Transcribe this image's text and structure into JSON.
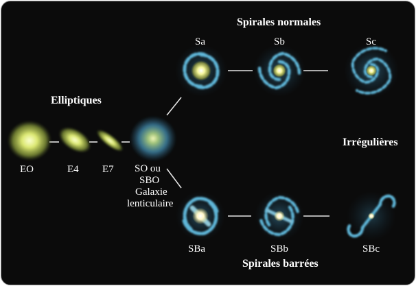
{
  "sections": {
    "elliptical": "Elliptiques",
    "normal_spirals": "Spirales normales",
    "irregular": "Irrégulières",
    "barred_spirals": "Spirales barrées"
  },
  "galaxies": {
    "e0": "EO",
    "e4": "E4",
    "e7": "E7",
    "s0": [
      "SO ou",
      "SBO",
      "Galaxie",
      "lenticulaire"
    ],
    "sa": "Sa",
    "sb": "Sb",
    "sc": "Sc",
    "sba": "SBa",
    "sbb": "SBb",
    "sbc": "SBc"
  },
  "colors": {
    "background": "#0b0b0b",
    "elliptical_glow": "#d8e46a",
    "spiral_arm": "#5fb6d8",
    "connector": "#e6e6e6"
  }
}
